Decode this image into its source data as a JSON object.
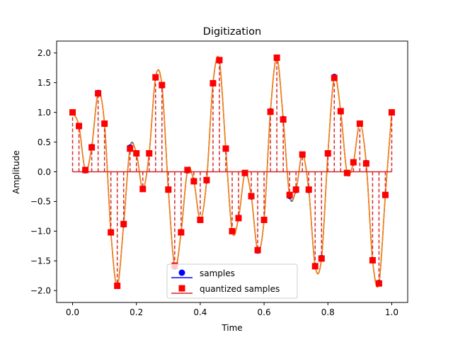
{
  "chart_data": {
    "type": "line",
    "title": "Digitization",
    "xlabel": "Time",
    "ylabel": "Amplitude",
    "xlim": [
      -0.05,
      1.05
    ],
    "ylim": [
      -2.2,
      2.2
    ],
    "x_ticks": [
      0.0,
      0.2,
      0.4,
      0.6,
      0.8,
      1.0
    ],
    "x_tick_labels": [
      "0.0",
      "0.2",
      "0.4",
      "0.6",
      "0.8",
      "1.0"
    ],
    "y_ticks": [
      -2.0,
      -1.5,
      -1.0,
      -0.5,
      0.0,
      0.5,
      1.0,
      1.5,
      2.0
    ],
    "y_tick_labels": [
      "−2.0",
      "−1.5",
      "−1.0",
      "−0.5",
      "0.0",
      "0.5",
      "1.0",
      "1.5",
      "2.0"
    ],
    "grid": false,
    "legend_position": "lower-center",
    "x": [
      0.0,
      0.02,
      0.04,
      0.06,
      0.08,
      0.1,
      0.12,
      0.14,
      0.16,
      0.18,
      0.2,
      0.22,
      0.24,
      0.26,
      0.28,
      0.3,
      0.32,
      0.34,
      0.36,
      0.38,
      0.4,
      0.42,
      0.44,
      0.46,
      0.48,
      0.5,
      0.52,
      0.54,
      0.56,
      0.58,
      0.6,
      0.62,
      0.64,
      0.66,
      0.68,
      0.7,
      0.72,
      0.74,
      0.76,
      0.78,
      0.8,
      0.82,
      0.84,
      0.86,
      0.88,
      0.9,
      0.92,
      0.94,
      0.96,
      0.98,
      1.0
    ],
    "series": [
      {
        "name": "samples",
        "color": "#0000ff",
        "marker": "circle",
        "values": [
          1.0,
          0.77,
          0.02,
          0.42,
          1.33,
          0.81,
          -1.02,
          -1.92,
          -0.89,
          0.41,
          0.31,
          -0.29,
          0.31,
          1.59,
          1.45,
          -0.3,
          -1.6,
          -1.02,
          0.02,
          -0.16,
          -0.81,
          -0.15,
          1.49,
          1.87,
          0.39,
          -1.0,
          -0.78,
          -0.02,
          -0.42,
          -1.33,
          -0.81,
          1.02,
          1.92,
          0.89,
          -0.41,
          -0.31,
          0.29,
          -0.31,
          -1.59,
          -1.45,
          0.3,
          1.6,
          1.02,
          -0.02,
          0.16,
          0.81,
          0.15,
          -1.49,
          -1.87,
          -0.39,
          1.0
        ]
      },
      {
        "name": "quantized samples",
        "color": "#ff0000",
        "stem_color": "#d62728",
        "marker": "square",
        "values": [
          1.0,
          0.77,
          0.03,
          0.41,
          1.32,
          0.81,
          -1.02,
          -1.92,
          -0.88,
          0.39,
          0.31,
          -0.29,
          0.31,
          1.59,
          1.46,
          -0.3,
          -1.58,
          -1.02,
          0.03,
          -0.16,
          -0.81,
          -0.14,
          1.49,
          1.88,
          0.39,
          -1.0,
          -0.78,
          -0.02,
          -0.41,
          -1.32,
          -0.81,
          1.01,
          1.92,
          0.88,
          -0.39,
          -0.3,
          0.29,
          -0.3,
          -1.59,
          -1.46,
          0.31,
          1.58,
          1.02,
          -0.02,
          0.16,
          0.81,
          0.14,
          -1.49,
          -1.88,
          -0.39,
          1.0
        ]
      }
    ],
    "curves": [
      {
        "color": "#1f77b4"
      },
      {
        "color": "#ff7f0e"
      }
    ],
    "legend": [
      {
        "label": "samples",
        "color": "#0000ff",
        "marker": "circle"
      },
      {
        "label": "quantized samples",
        "color": "#ff0000",
        "line_color": "#d62728",
        "marker": "square"
      }
    ]
  }
}
